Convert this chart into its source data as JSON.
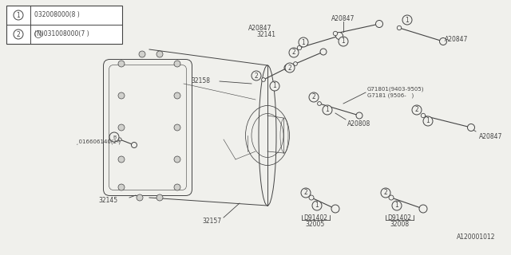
{
  "bg_color": "#f0f0ec",
  "line_color": "#444444",
  "legend_items": [
    {
      "num": "1",
      "code": "032008000(8 )"
    },
    {
      "num": "2",
      "code": "(N)031008000(7 )"
    }
  ],
  "diagram_id": "A120001012"
}
